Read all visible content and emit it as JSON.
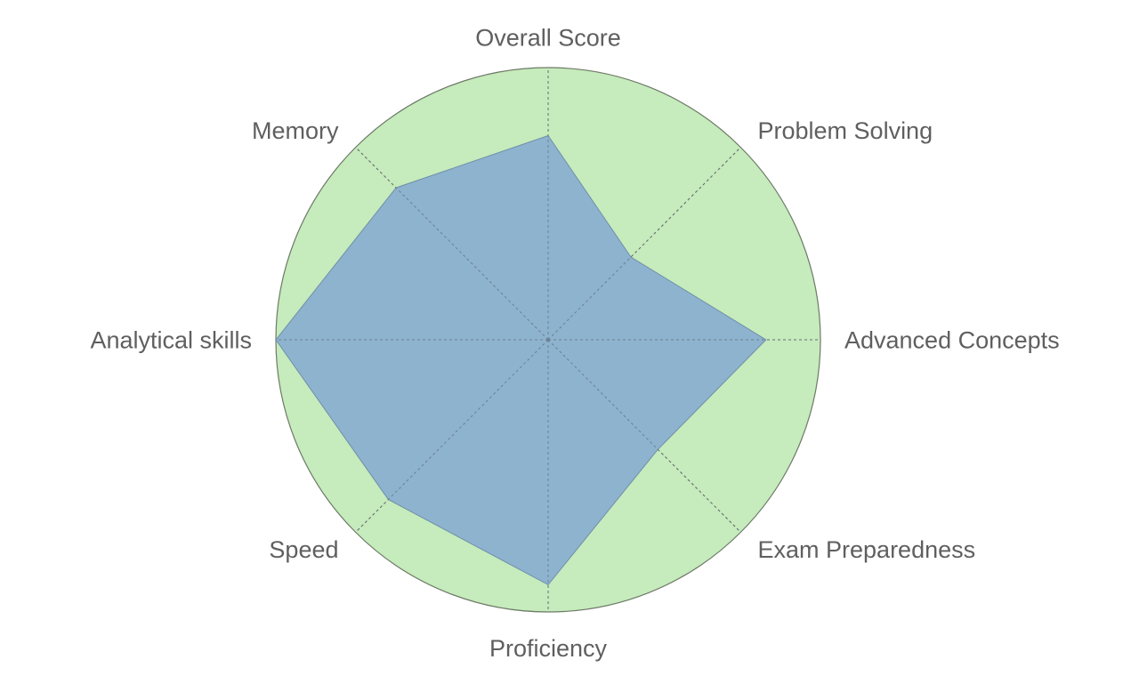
{
  "chart_data": {
    "type": "radar",
    "axes": [
      "Overall Score",
      "Problem Solving",
      "Advanced Concepts",
      "Exam Preparedness",
      "Proficiency",
      "Speed",
      "Analytical skills",
      "Memory"
    ],
    "series": [
      {
        "values": [
          75,
          43,
          80,
          57,
          90,
          83,
          100,
          79
        ],
        "color": "#8bb0cf"
      }
    ],
    "max": 100,
    "background_color": "#c6ebbc",
    "spoke_style": "dashed",
    "grid": false,
    "legend": "none"
  }
}
